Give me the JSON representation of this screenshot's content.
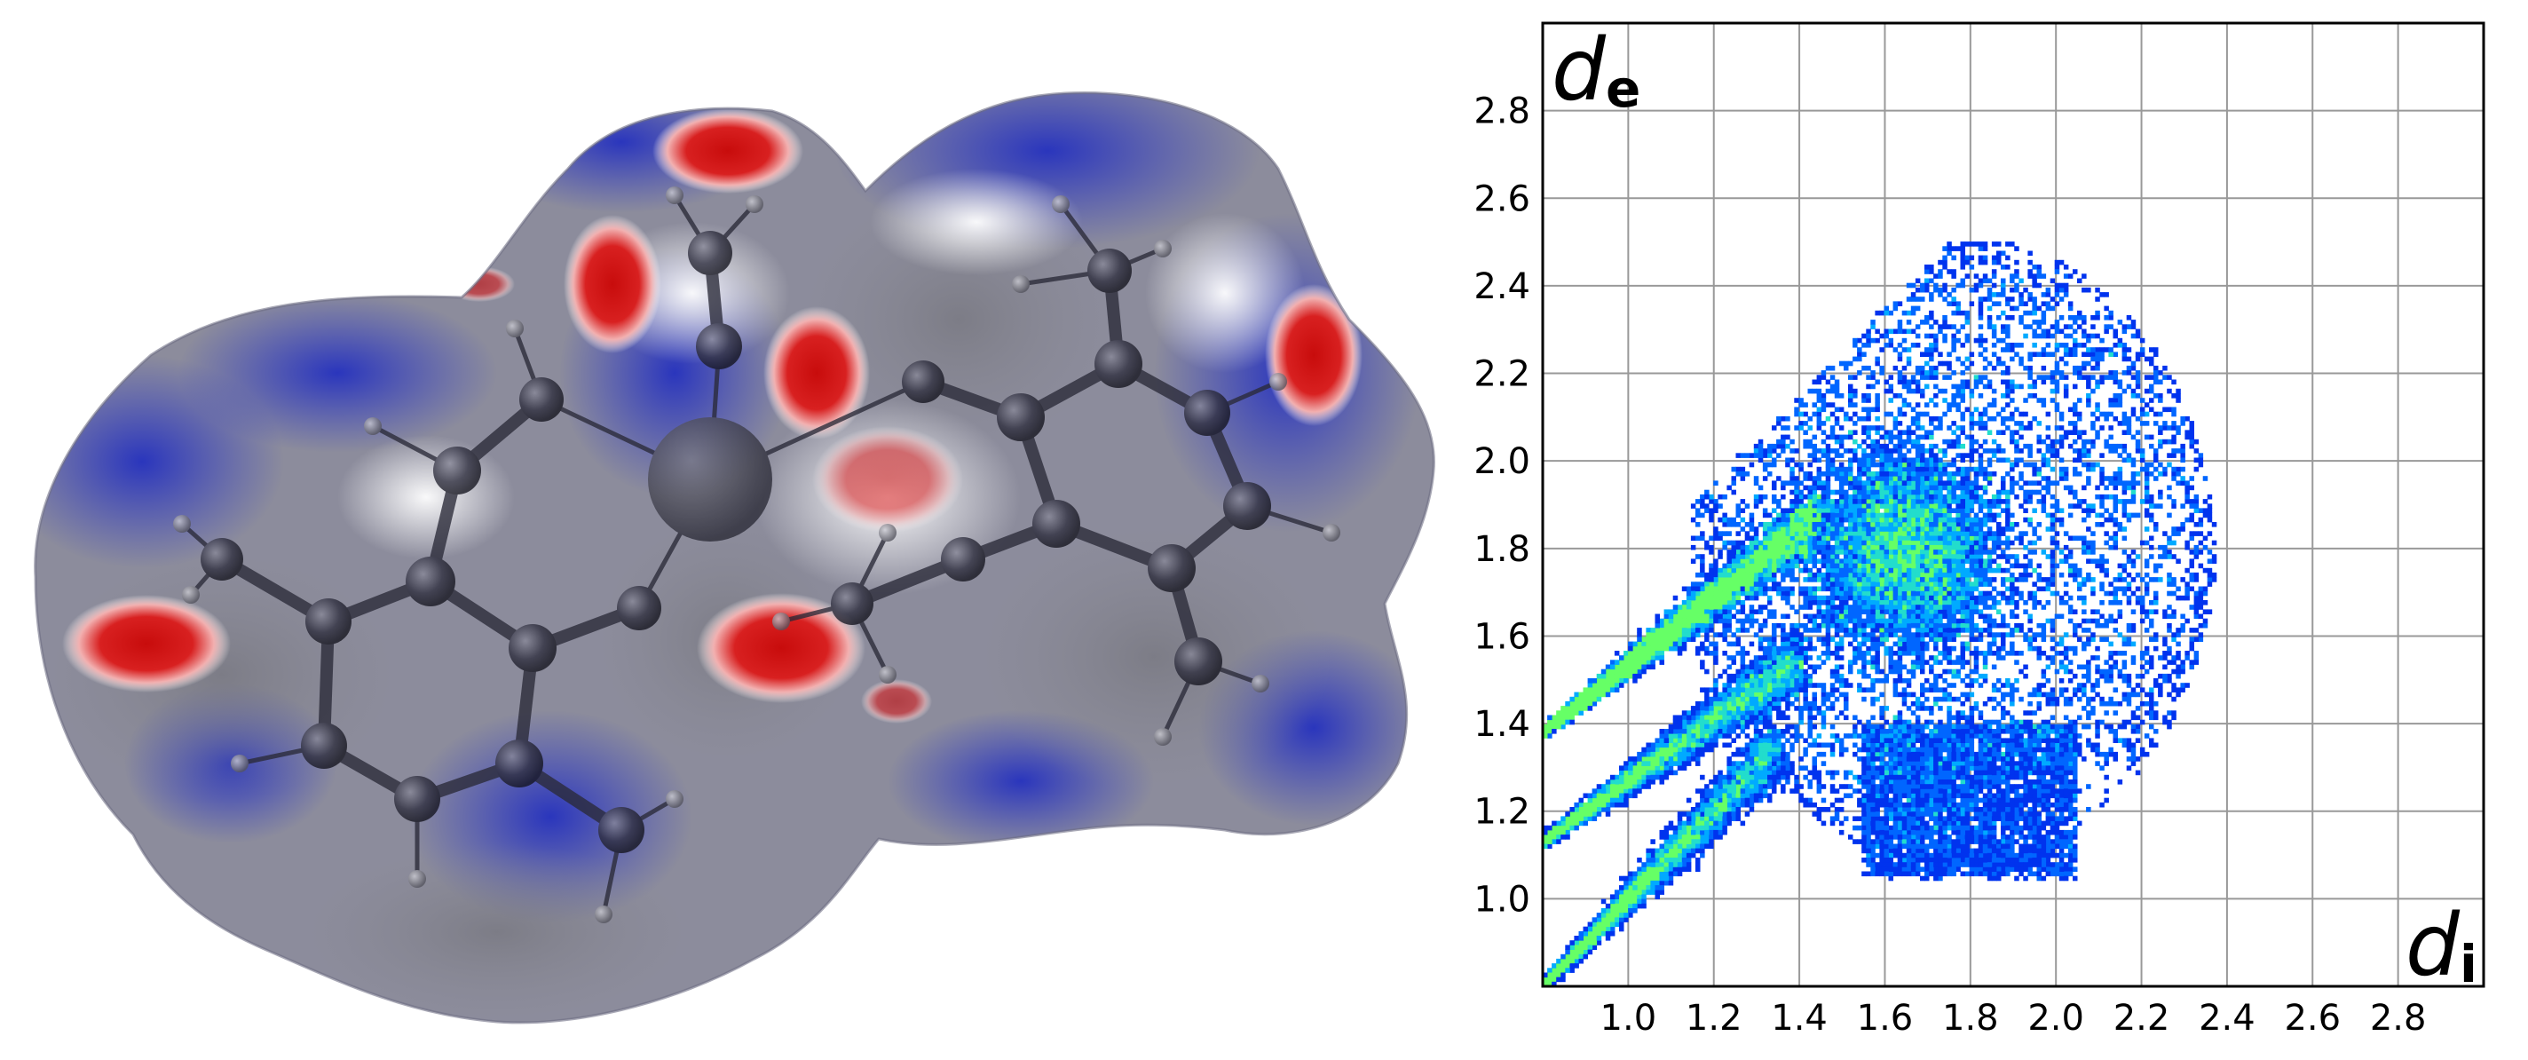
{
  "chart_data": {
    "type": "heatmap",
    "xlabel": "d",
    "xlabel_sub": "i",
    "ylabel": "d",
    "ylabel_sub": "e",
    "xlim": [
      0.8,
      3.0
    ],
    "ylim": [
      0.8,
      3.0
    ],
    "grid": true,
    "x_ticks": [
      "1.0",
      "1.2",
      "1.4",
      "1.6",
      "1.8",
      "2.0",
      "2.2",
      "2.4",
      "2.6",
      "2.8"
    ],
    "y_ticks": [
      "1.0",
      "1.2",
      "1.4",
      "1.6",
      "1.8",
      "2.0",
      "2.2",
      "2.4",
      "2.6",
      "2.8"
    ],
    "tick_values": [
      1.0,
      1.2,
      1.4,
      1.6,
      1.8,
      2.0,
      2.2,
      2.4,
      2.6,
      2.8
    ],
    "colormap": [
      "#0033ee",
      "#0066ff",
      "#00aaff",
      "#22ddcc",
      "#66ff66"
    ],
    "density_regions": [
      {
        "shape": "main-body",
        "di_range": [
          1.15,
          2.45
        ],
        "de_range": [
          1.05,
          2.55
        ]
      },
      {
        "shape": "spike",
        "di_start": 0.8,
        "de_start": 1.38,
        "di_end": 1.45,
        "de_end": 1.88
      },
      {
        "shape": "spike",
        "di_start": 0.8,
        "de_start": 1.13,
        "di_end": 1.4,
        "de_end": 1.55
      },
      {
        "shape": "spike",
        "di_start": 0.8,
        "de_start": 0.8,
        "di_end": 1.35,
        "de_end": 1.35
      }
    ]
  },
  "surface": {
    "type": "hirshfeld-dnorm-surface",
    "colors": {
      "contact": "#cc1010",
      "neutral": "#ffffff",
      "no_contact": "#2a35c8",
      "body": "#8a8a9a"
    }
  }
}
